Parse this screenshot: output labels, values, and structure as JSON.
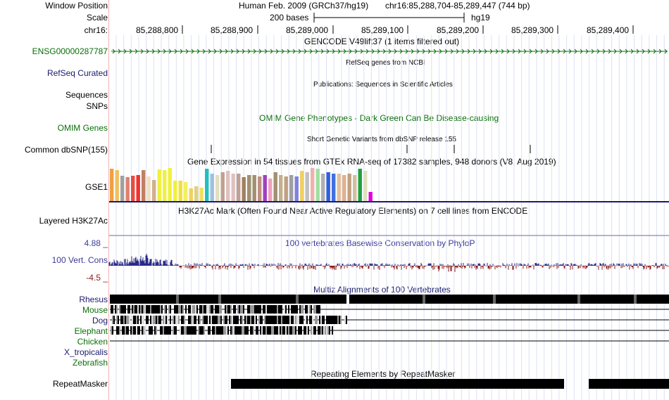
{
  "header": {
    "window_position_label": "Window Position",
    "assembly": "Human Feb. 2009 (GRCh37/hg19)",
    "position": "chr16:85,288,704-85,289,447 (744 bp)",
    "scale_label": "Scale",
    "scale_text": "200 bases",
    "scale_db": "hg19",
    "chrom_label": "chr16:",
    "ticks": [
      "85,288,800",
      "85,288,900",
      "85,289,000",
      "85,289,100",
      "85,289,200",
      "85,289,300",
      "85,289,400"
    ]
  },
  "tracks": {
    "gencode": {
      "title": "GENCODE V49lift37 (1 items filtered out)",
      "label": "ENSG00000287787",
      "color": "#0a6e0a"
    },
    "refseq": {
      "label": "RefSeq Curated",
      "title": "RefSeq genes from NCBI"
    },
    "publications": {
      "label": "Sequences",
      "title": "Publications: Sequences in Scientific Articles"
    },
    "snps": {
      "label": "SNPs"
    },
    "omim": {
      "label": "OMIM Genes",
      "title": "OMIM Gene Phenotypes - Dark Green Can Be Disease-causing"
    },
    "dbsnp": {
      "label": "Common dbSNP(155)",
      "title": "Short Genetic Variants from dbSNP release 155"
    },
    "gtex": {
      "label": "GSE1",
      "title": "Gene Expression in 54 tissues from GTEx RNA-seq of 17382 samples, 948 donors (V8, Aug 2019)"
    },
    "h3k27ac": {
      "label": "Layered H3K27Ac",
      "title": "H3K27Ac Mark (Often Found Near Active Regulatory Elements) on 7 cell lines from ENCODE"
    },
    "cons": {
      "label": "100 Vert. Cons",
      "title": "100 vertebrates Basewise Conservation by PhyloP",
      "max": "4.88 _",
      "min": "-4.5 _"
    },
    "multiz": {
      "title": "Multiz Alignments of 100 Vertebrates",
      "species": [
        "Rhesus",
        "Mouse",
        "Dog",
        "Elephant",
        "Chicken",
        "X_tropicalis",
        "Zebrafish"
      ]
    },
    "repeatmasker": {
      "label": "RepeatMasker",
      "title": "Repeating Elements by RepeatMasker"
    }
  },
  "colors": {
    "gtex": [
      "#f0a040",
      "#f0c060",
      "#a0a0a0",
      "#e08070",
      "#e05040",
      "#f03030",
      "#c08060",
      "#f0e0c0",
      "#d0b090",
      "#f0f040",
      "#f0f040",
      "#f0f040",
      "#f0f040",
      "#f0e040",
      "#f0f060",
      "#f0d060",
      "#e0d080",
      "#f0e060",
      "#20c0c0",
      "#a0c0e0",
      "#e0e0c0",
      "#c0a090",
      "#e0c0c0",
      "#e0c0c0",
      "#c0a090",
      "#a08060",
      "#a09070",
      "#a09070",
      "#c09080",
      "#a040c0",
      "#f0a0c0",
      "#a09070",
      "#c0b090",
      "#c0a080",
      "#a0a0a0",
      "#8080e0",
      "#f0d060",
      "#c0c0c0",
      "#f0b0b0",
      "#a0e0a0",
      "#b0b0b0",
      "#3060e0",
      "#4070e0",
      "#e0c0a0",
      "#e0b090",
      "#c0a080",
      "#d0c0a0",
      "#20a040",
      "#e0e0c0",
      "#e000e0"
    ]
  }
}
